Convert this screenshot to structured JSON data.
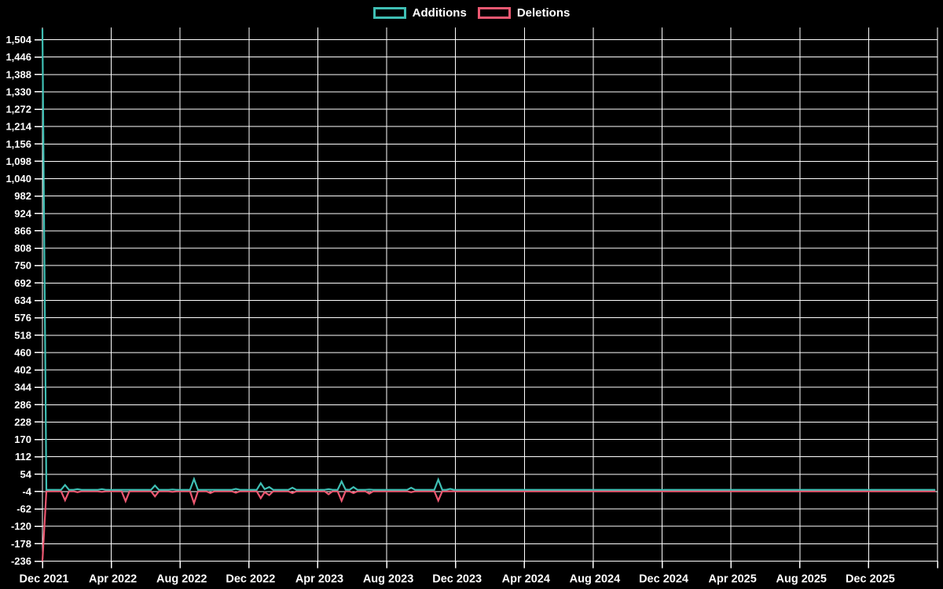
{
  "legend": [
    {
      "label": "Additions",
      "color": "#3fbfb4"
    },
    {
      "label": "Deletions",
      "color": "#ec5871"
    }
  ],
  "chart_data": {
    "type": "line",
    "background": "#000000",
    "grid_color": "#ffffff",
    "text_color": "#ffffff",
    "legend_position": "top-center",
    "grid": true,
    "y_axis": {
      "tick_min": -236,
      "tick_max": 1504,
      "tick_step": 58
    },
    "ylim": [
      -236,
      1544
    ],
    "x_tick_labels": [
      "Dec 2021",
      "Apr 2022",
      "Aug 2022",
      "Dec 2022",
      "Apr 2023",
      "Aug 2023",
      "Dec 2023",
      "Apr 2024",
      "Aug 2024",
      "Dec 2024",
      "Apr 2025",
      "Aug 2025",
      "Dec 2025"
    ],
    "x_range": [
      "2021-12-01",
      "2026-04-01"
    ],
    "series": [
      {
        "name": "Additions",
        "color": "#3fbfb4",
        "points": [
          [
            "2021-12-01",
            1540
          ],
          [
            "2021-12-08",
            2
          ],
          [
            "2022-01-03",
            2
          ],
          [
            "2022-01-10",
            18
          ],
          [
            "2022-01-17",
            2
          ],
          [
            "2022-01-25",
            2
          ],
          [
            "2022-02-01",
            4
          ],
          [
            "2022-02-08",
            2
          ],
          [
            "2022-03-09",
            2
          ],
          [
            "2022-03-16",
            4
          ],
          [
            "2022-03-23",
            2
          ],
          [
            "2022-06-11",
            2
          ],
          [
            "2022-06-18",
            16
          ],
          [
            "2022-06-25",
            2
          ],
          [
            "2022-07-12",
            2
          ],
          [
            "2022-07-19",
            3
          ],
          [
            "2022-07-26",
            2
          ],
          [
            "2022-08-19",
            2
          ],
          [
            "2022-08-26",
            38
          ],
          [
            "2022-09-02",
            2
          ],
          [
            "2022-11-01",
            2
          ],
          [
            "2022-11-08",
            5
          ],
          [
            "2022-11-15",
            2
          ],
          [
            "2022-12-15",
            2
          ],
          [
            "2022-12-22",
            24
          ],
          [
            "2022-12-29",
            4
          ],
          [
            "2023-01-06",
            11
          ],
          [
            "2023-01-13",
            2
          ],
          [
            "2023-02-09",
            2
          ],
          [
            "2023-02-16",
            9
          ],
          [
            "2023-02-23",
            2
          ],
          [
            "2023-04-14",
            2
          ],
          [
            "2023-04-21",
            4
          ],
          [
            "2023-04-28",
            2
          ],
          [
            "2023-05-07",
            2
          ],
          [
            "2023-05-14",
            30
          ],
          [
            "2023-05-21",
            3
          ],
          [
            "2023-05-28",
            2
          ],
          [
            "2023-06-04",
            11
          ],
          [
            "2023-06-11",
            2
          ],
          [
            "2023-06-25",
            2
          ],
          [
            "2023-07-02",
            3
          ],
          [
            "2023-07-09",
            2
          ],
          [
            "2023-09-07",
            2
          ],
          [
            "2023-09-14",
            9
          ],
          [
            "2023-09-21",
            2
          ],
          [
            "2023-10-25",
            2
          ],
          [
            "2023-11-01",
            36
          ],
          [
            "2023-11-08",
            2
          ],
          [
            "2023-11-15",
            2
          ],
          [
            "2023-11-22",
            5
          ],
          [
            "2023-11-29",
            2
          ],
          [
            "2026-03-29",
            2
          ]
        ]
      },
      {
        "name": "Deletions",
        "color": "#ec5871",
        "points": [
          [
            "2021-12-01",
            -236
          ],
          [
            "2021-12-08",
            -3
          ],
          [
            "2022-01-03",
            -3
          ],
          [
            "2022-01-10",
            -33
          ],
          [
            "2022-01-17",
            -3
          ],
          [
            "2022-01-25",
            -3
          ],
          [
            "2022-02-01",
            -6
          ],
          [
            "2022-02-08",
            -3
          ],
          [
            "2022-03-09",
            -3
          ],
          [
            "2022-03-16",
            -5
          ],
          [
            "2022-03-23",
            -3
          ],
          [
            "2022-04-20",
            -3
          ],
          [
            "2022-04-27",
            -36
          ],
          [
            "2022-05-04",
            -3
          ],
          [
            "2022-06-11",
            -3
          ],
          [
            "2022-06-18",
            -20
          ],
          [
            "2022-06-25",
            -3
          ],
          [
            "2022-07-12",
            -3
          ],
          [
            "2022-07-19",
            -5
          ],
          [
            "2022-07-26",
            -3
          ],
          [
            "2022-08-19",
            -3
          ],
          [
            "2022-08-26",
            -43
          ],
          [
            "2022-09-02",
            -3
          ],
          [
            "2022-09-17",
            -3
          ],
          [
            "2022-09-24",
            -9
          ],
          [
            "2022-10-01",
            -3
          ],
          [
            "2022-11-01",
            -3
          ],
          [
            "2022-11-08",
            -8
          ],
          [
            "2022-11-15",
            -3
          ],
          [
            "2022-12-15",
            -3
          ],
          [
            "2022-12-22",
            -26
          ],
          [
            "2022-12-29",
            -6
          ],
          [
            "2023-01-06",
            -16
          ],
          [
            "2023-01-13",
            -3
          ],
          [
            "2023-02-09",
            -3
          ],
          [
            "2023-02-16",
            -9
          ],
          [
            "2023-02-23",
            -3
          ],
          [
            "2023-04-14",
            -3
          ],
          [
            "2023-04-21",
            -13
          ],
          [
            "2023-04-28",
            -3
          ],
          [
            "2023-05-07",
            -3
          ],
          [
            "2023-05-14",
            -35
          ],
          [
            "2023-05-21",
            -3
          ],
          [
            "2023-05-28",
            -3
          ],
          [
            "2023-06-04",
            -9
          ],
          [
            "2023-06-11",
            -3
          ],
          [
            "2023-06-25",
            -3
          ],
          [
            "2023-07-02",
            -11
          ],
          [
            "2023-07-09",
            -3
          ],
          [
            "2023-09-07",
            -3
          ],
          [
            "2023-09-14",
            -6
          ],
          [
            "2023-09-21",
            -3
          ],
          [
            "2023-10-25",
            -3
          ],
          [
            "2023-11-01",
            -34
          ],
          [
            "2023-11-08",
            -3
          ],
          [
            "2026-03-29",
            -3
          ]
        ]
      }
    ]
  }
}
